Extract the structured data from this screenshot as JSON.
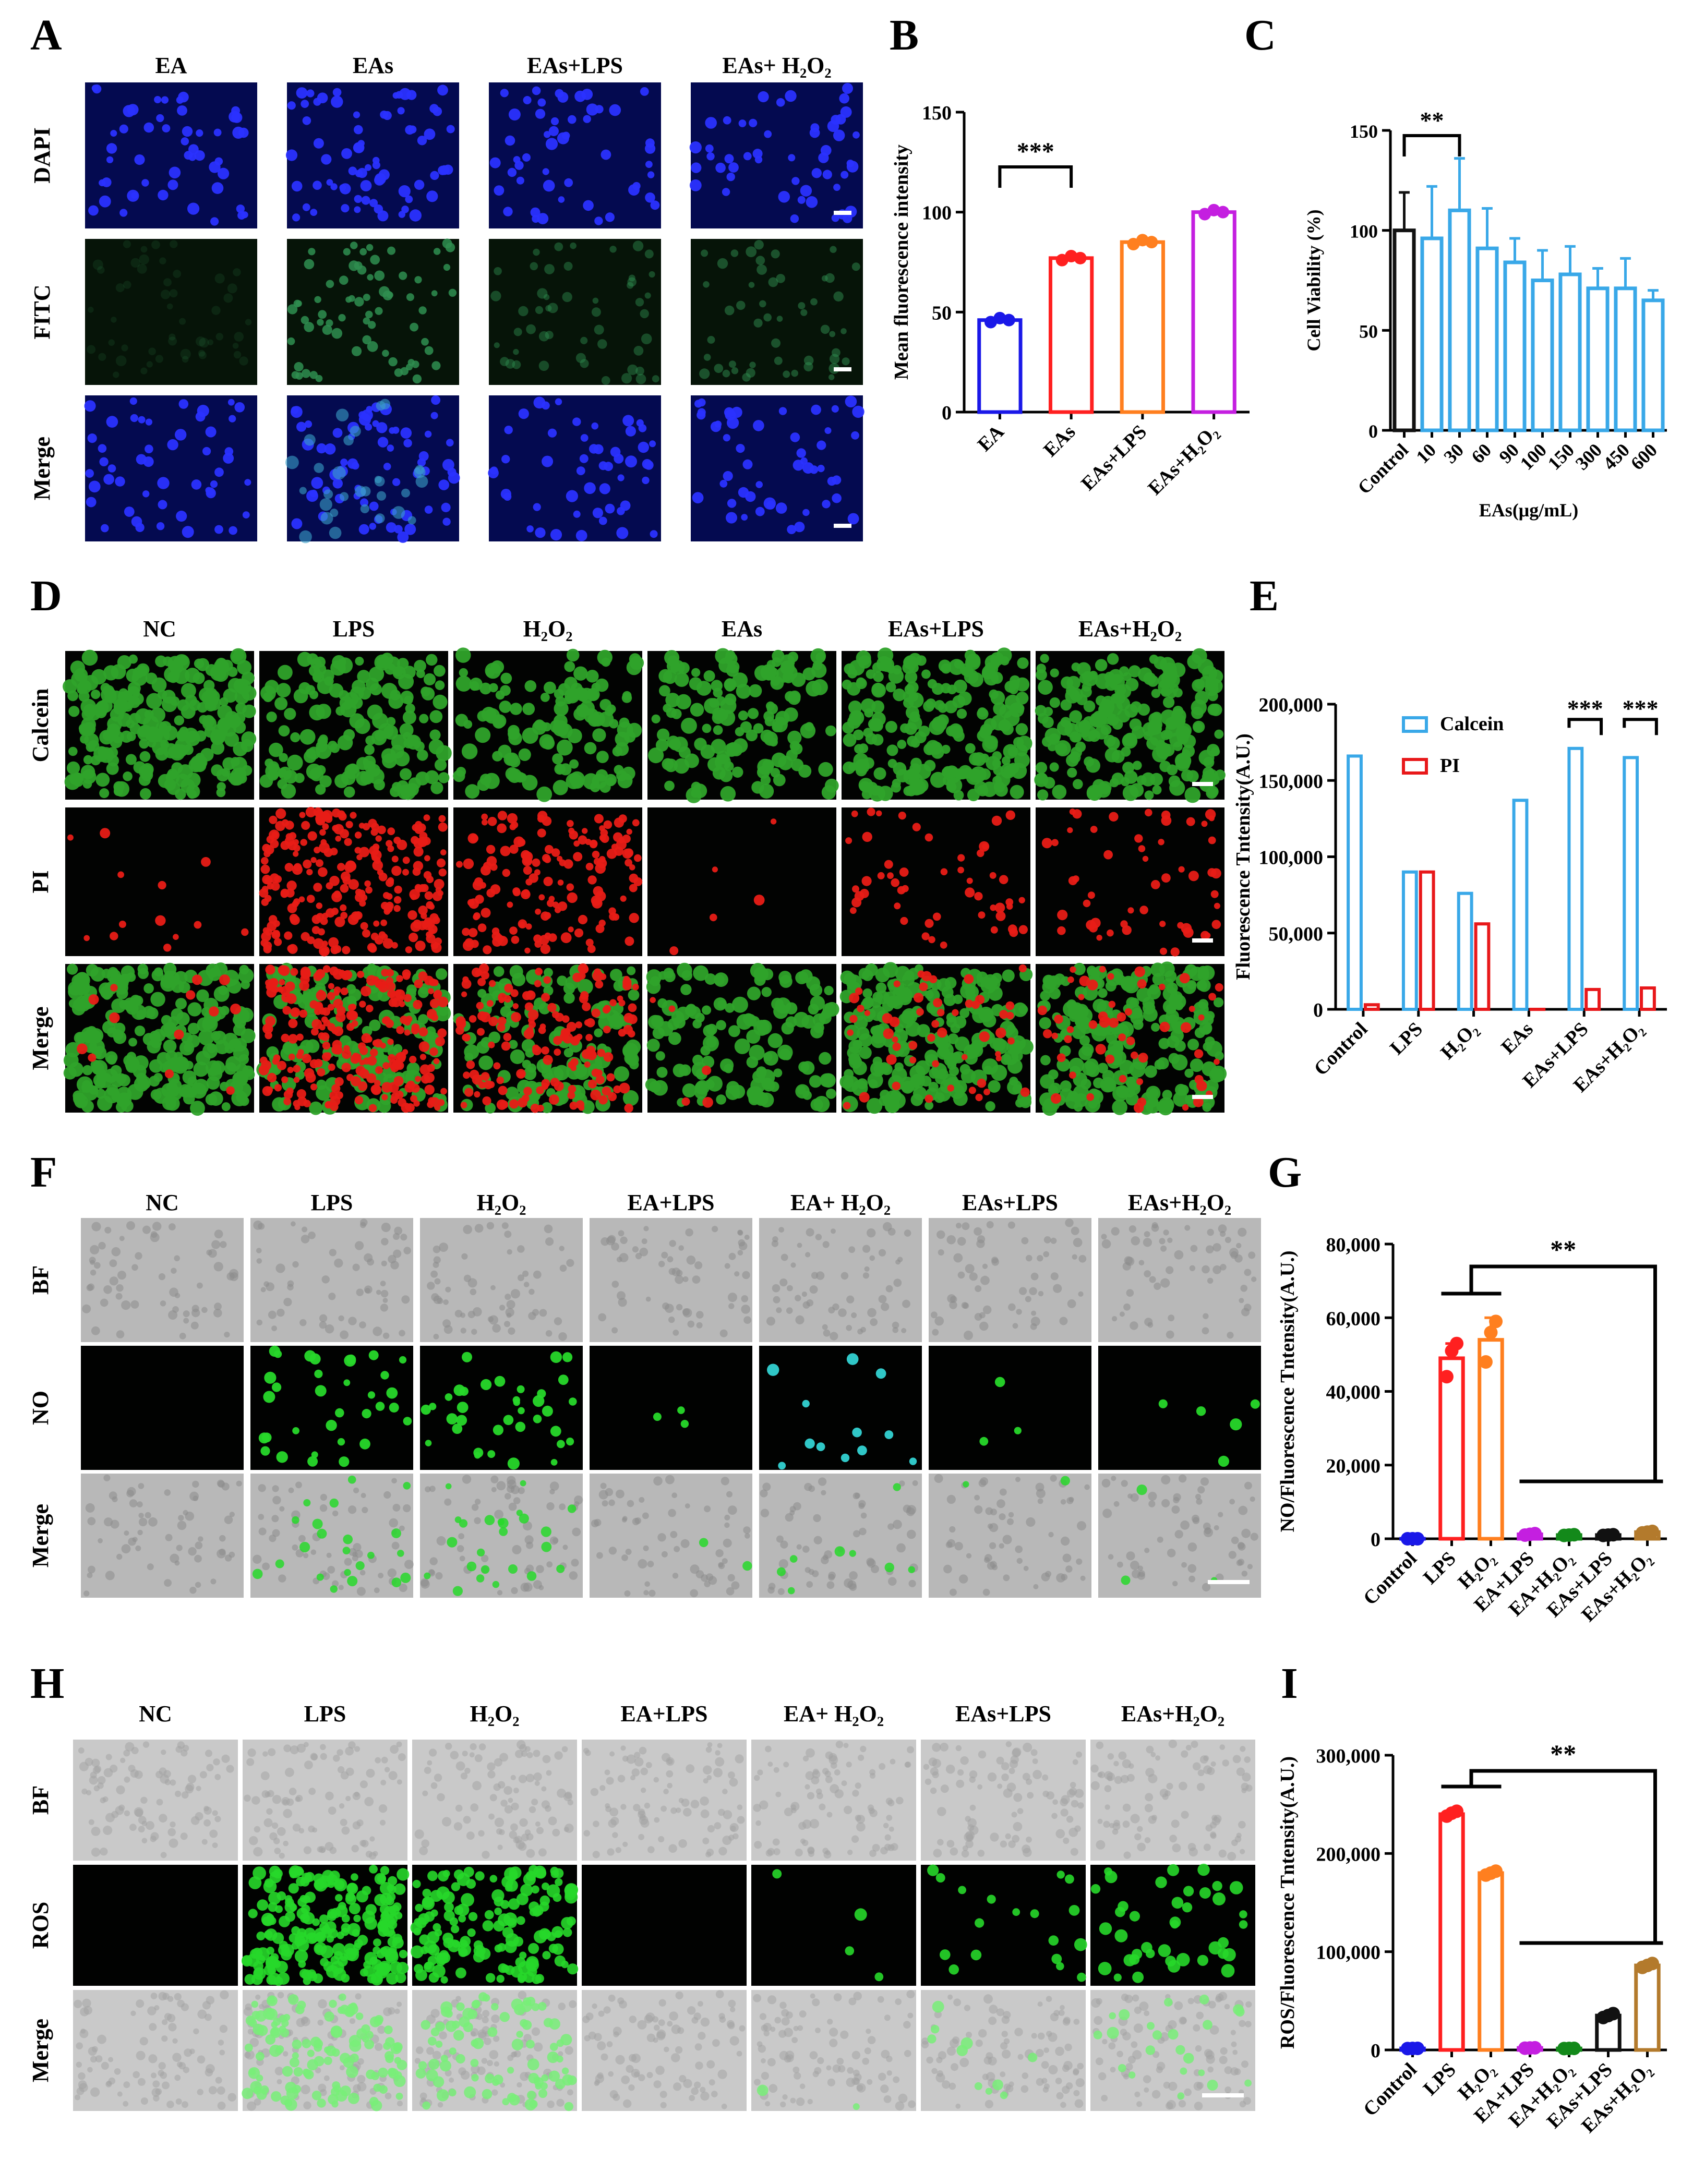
{
  "panel_letters": [
    "A",
    "B",
    "C",
    "D",
    "E",
    "F",
    "G",
    "H",
    "I"
  ],
  "colors": {
    "blue": "#1a18e8",
    "red": "#ff2020",
    "orange": "#ff7f1f",
    "magenta": "#c41fe0",
    "green": "#13891a",
    "black": "#111111",
    "brown": "#b37a2c",
    "sky": "#39a8e8",
    "pi_red": "#e8181a",
    "dapi_bg": "#040a50",
    "dapi_cell": "#2a32ff",
    "fitc_bg": "#061408",
    "fitc_cell": "#2f8e50",
    "calcein": "#2fa32a",
    "pi": "#e81c16",
    "bf_bg": "#b8b8b8",
    "bf_cell": "#8c8c8c",
    "no_cell": "#27d82a",
    "no_cyan": "#33d2d2"
  },
  "microscopy": {
    "A": {
      "columns": [
        "EA",
        "EAs",
        "EAs+LPS",
        "EAs+ H₂O₂"
      ],
      "rows": [
        "DAPI",
        "FITC",
        "Merge"
      ],
      "fitc_level": [
        0.15,
        0.85,
        0.45,
        0.5
      ]
    },
    "D": {
      "columns": [
        "NC",
        "LPS",
        "H₂O₂",
        "EAs",
        "EAs+LPS",
        "EAs+H₂O₂"
      ],
      "rows": [
        "Calcein",
        "PI",
        "Merge"
      ],
      "calcein_level": [
        0.95,
        0.6,
        0.5,
        0.55,
        0.85,
        0.85
      ],
      "pi_level": [
        0.05,
        0.95,
        0.6,
        0.02,
        0.2,
        0.2
      ]
    },
    "F": {
      "columns": [
        "NC",
        "LPS",
        "H₂O₂",
        "EA+LPS",
        "EA+ H₂O₂",
        "EAs+LPS",
        "EAs+H₂O₂"
      ],
      "rows": [
        "BF",
        "NO",
        "Merge"
      ],
      "no_level": [
        0.0,
        0.55,
        0.6,
        0.05,
        0.2,
        0.05,
        0.08
      ]
    },
    "H": {
      "columns": [
        "NC",
        "LPS",
        "H₂O₂",
        "EA+LPS",
        "EA+ H₂O₂",
        "EAs+LPS",
        "EAs+H₂O₂"
      ],
      "rows": [
        "BF",
        "ROS",
        "Merge"
      ],
      "ros_level": [
        0.0,
        1.0,
        0.7,
        0.0,
        0.02,
        0.08,
        0.18
      ]
    }
  },
  "chart_data": [
    {
      "panel": "B",
      "type": "bar",
      "ylabel": "Mean fluorescence intensity",
      "ylim": [
        0,
        150
      ],
      "yticks": [
        "0",
        "50",
        "100",
        "150"
      ],
      "categories": [
        "EA",
        "EAs",
        "EAs+LPS",
        "EAs+H₂O₂"
      ],
      "values": [
        46,
        77,
        85,
        100
      ],
      "points": [
        [
          45,
          47,
          46
        ],
        [
          76,
          78,
          77
        ],
        [
          84,
          86,
          85
        ],
        [
          99,
          101,
          100
        ]
      ],
      "bar_colors": [
        "#1a18e8",
        "#ff2020",
        "#ff7f1f",
        "#c41fe0"
      ],
      "significance": [
        {
          "from": 0,
          "to": 1,
          "label": "***"
        }
      ]
    },
    {
      "panel": "C",
      "type": "bar",
      "xlabel": "EAs(μg/mL)",
      "ylabel": "Cell Viability (%)",
      "ylim": [
        0,
        150
      ],
      "yticks": [
        "0",
        "50",
        "100",
        "150"
      ],
      "categories": [
        "Control",
        "10",
        "30",
        "60",
        "90",
        "100",
        "150",
        "300",
        "450",
        "600"
      ],
      "values": [
        100,
        96,
        110,
        91,
        84,
        75,
        78,
        71,
        71,
        65
      ],
      "errors": [
        19,
        26,
        26,
        20,
        12,
        15,
        14,
        10,
        15,
        5
      ],
      "bar_colors": [
        "#111111",
        "#39a8e8",
        "#39a8e8",
        "#39a8e8",
        "#39a8e8",
        "#39a8e8",
        "#39a8e8",
        "#39a8e8",
        "#39a8e8",
        "#39a8e8"
      ],
      "significance": [
        {
          "from": 0,
          "to": 2,
          "label": "**"
        }
      ]
    },
    {
      "panel": "E",
      "type": "bar",
      "ylabel": "Fluorescence Tntensity(A.U.)",
      "ylim": [
        0,
        200000
      ],
      "yticks": [
        "0",
        "50,000",
        "100,000",
        "150,000",
        "200,000"
      ],
      "categories": [
        "Control",
        "LPS",
        "H₂O₂",
        "EAs",
        "EAs+LPS",
        "EAs+H₂O₂"
      ],
      "legend": "top",
      "series": [
        {
          "name": "Calcein",
          "values": [
            166000,
            90000,
            76000,
            137000,
            171000,
            165000
          ],
          "color": "#39a8e8"
        },
        {
          "name": "PI",
          "values": [
            3000,
            90000,
            56000,
            0,
            13000,
            14000
          ],
          "color": "#e8181a"
        }
      ],
      "significance": [
        {
          "group": 4,
          "label": "***"
        },
        {
          "group": 5,
          "label": "***"
        }
      ]
    },
    {
      "panel": "G",
      "type": "bar",
      "ylabel": "NO/Fluorescence Tntensity(A.U.)",
      "ylim": [
        0,
        80000
      ],
      "yticks": [
        "0",
        "20,000",
        "40,000",
        "60,000",
        "80,000"
      ],
      "categories": [
        "Control",
        "LPS",
        "H₂O₂",
        "EA+LPS",
        "EA+H₂O₂",
        "EAs+LPS",
        "EAs+H₂O₂"
      ],
      "values": [
        0,
        49000,
        54000,
        1200,
        1000,
        1000,
        1800
      ],
      "errors": [
        300,
        4000,
        6000,
        400,
        300,
        300,
        400
      ],
      "points": [
        [
          0,
          0,
          0
        ],
        [
          44000,
          51000,
          53000
        ],
        [
          48000,
          56000,
          59000
        ],
        [
          1000,
          1200,
          1400
        ],
        [
          900,
          1000,
          1100
        ],
        [
          900,
          1000,
          1100
        ],
        [
          1600,
          1800,
          2000
        ]
      ],
      "bar_colors": [
        "#1a18e8",
        "#ff2020",
        "#ff7f1f",
        "#c41fe0",
        "#13891a",
        "#111111",
        "#b37a2c"
      ],
      "significance": [
        {
          "left": [
            1,
            2
          ],
          "right": [
            3,
            6
          ],
          "label": "**"
        }
      ]
    },
    {
      "panel": "I",
      "type": "bar",
      "ylabel": "ROS/Fluorescence Tntensity(A.U.)",
      "ylim": [
        0,
        300000
      ],
      "yticks": [
        "0",
        "100,000",
        "200,000",
        "300,000"
      ],
      "categories": [
        "Control",
        "LPS",
        "H₂O₂",
        "EA+LPS",
        "EA+H₂O₂",
        "EAs+LPS",
        "EAs+H₂O₂"
      ],
      "values": [
        1500,
        240000,
        180000,
        2000,
        1500,
        35000,
        86000
      ],
      "errors": [
        300,
        3000,
        3000,
        400,
        300,
        2500,
        2000
      ],
      "points": [
        [
          1400,
          1500,
          1600
        ],
        [
          238000,
          241000,
          243000
        ],
        [
          178000,
          180000,
          182000
        ],
        [
          1800,
          2000,
          2200
        ],
        [
          1400,
          1500,
          1600
        ],
        [
          33000,
          35000,
          37000
        ],
        [
          84000,
          86000,
          88000
        ]
      ],
      "bar_colors": [
        "#1a18e8",
        "#ff2020",
        "#ff7f1f",
        "#c41fe0",
        "#13891a",
        "#111111",
        "#b37a2c"
      ],
      "significance": [
        {
          "left": [
            1,
            2
          ],
          "right": [
            3,
            6
          ],
          "label": "**"
        }
      ]
    }
  ]
}
